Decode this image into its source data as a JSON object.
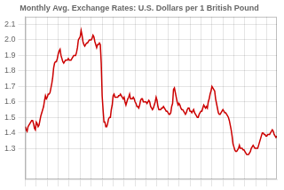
{
  "chart_data": {
    "type": "line",
    "title": "Monthly Avg. Exchange Rates: U.S. Dollars per 1 British Pound",
    "color": "#cc0000",
    "grid": true,
    "tick_labels": "y",
    "xlim": [
      0,
      275
    ],
    "xticks": [
      0,
      12,
      24,
      36,
      48,
      60,
      72,
      84,
      96,
      108,
      120,
      132,
      144,
      156,
      168,
      180,
      192,
      204,
      216,
      228,
      240,
      252,
      264
    ],
    "ylim": [
      1.1,
      2.15
    ],
    "yticks": [
      1.3,
      1.4,
      1.5,
      1.6,
      1.7,
      1.8,
      1.9,
      {
        "value": 2.0,
        "label": "2.0"
      },
      2.1
    ],
    "x": [
      0,
      1,
      2,
      3,
      4,
      5,
      6,
      7,
      8,
      9,
      10,
      11,
      12,
      13,
      14,
      15,
      16,
      17,
      18,
      19,
      20,
      21,
      22,
      23,
      24,
      25,
      26,
      27,
      28,
      29,
      30,
      31,
      32,
      33,
      34,
      35,
      36,
      37,
      38,
      39,
      40,
      41,
      42,
      43,
      44,
      45,
      46,
      47,
      48,
      49,
      50,
      51,
      52,
      53,
      54,
      55,
      56,
      57,
      58,
      59,
      60,
      61,
      62,
      63,
      64,
      65,
      66,
      67,
      68,
      69,
      70,
      71,
      72,
      73,
      74,
      75,
      76,
      77,
      78,
      79,
      80,
      81,
      82,
      83,
      84,
      85,
      86,
      87,
      88,
      89,
      90,
      91,
      92,
      93,
      94,
      95,
      96,
      97,
      98,
      99,
      100,
      101,
      102,
      103,
      104,
      105,
      106,
      107,
      108,
      109,
      110,
      111,
      112,
      113,
      114,
      115,
      116,
      117,
      118,
      119,
      120,
      121,
      122,
      123,
      124,
      125,
      126,
      127,
      128,
      129,
      130,
      131,
      132,
      133,
      134,
      135,
      136,
      137,
      138,
      139,
      140,
      141,
      142,
      143,
      144,
      145,
      146,
      147,
      148,
      149,
      150,
      151,
      152,
      153,
      154,
      155,
      156,
      157,
      158,
      159,
      160,
      161,
      162,
      163,
      164,
      165,
      166,
      167,
      168,
      169,
      170,
      171,
      172,
      173,
      174,
      175,
      176,
      177,
      178,
      179,
      180,
      181,
      182,
      183,
      184,
      185,
      186,
      187,
      188,
      189,
      190,
      191,
      192,
      193,
      194,
      195,
      196,
      197,
      198,
      199,
      200,
      201,
      202,
      203,
      204,
      205,
      206,
      207,
      208,
      209,
      210,
      211,
      212,
      213,
      214,
      215,
      216,
      217,
      218,
      219,
      220,
      221,
      222,
      223,
      224,
      225,
      226,
      227,
      228,
      229,
      230,
      231,
      232,
      233,
      234,
      235,
      236,
      237,
      238,
      239,
      240,
      241,
      242,
      243,
      244,
      245,
      246,
      247,
      248,
      249,
      250,
      251,
      252,
      253,
      254,
      255,
      256,
      257,
      258,
      259,
      260,
      261,
      262,
      263,
      264,
      265,
      266,
      267,
      268,
      269,
      270,
      271,
      272,
      273,
      274,
      275
    ],
    "values": [
      1.44,
      1.42,
      1.41,
      1.44,
      1.45,
      1.46,
      1.47,
      1.48,
      1.48,
      1.46,
      1.43,
      1.42,
      1.47,
      1.46,
      1.44,
      1.45,
      1.48,
      1.51,
      1.53,
      1.55,
      1.57,
      1.61,
      1.64,
      1.62,
      1.63,
      1.65,
      1.65,
      1.66,
      1.69,
      1.72,
      1.76,
      1.82,
      1.85,
      1.86,
      1.86,
      1.88,
      1.91,
      1.93,
      1.94,
      1.9,
      1.88,
      1.86,
      1.85,
      1.86,
      1.87,
      1.87,
      1.87,
      1.88,
      1.87,
      1.87,
      1.87,
      1.88,
      1.89,
      1.9,
      1.9,
      1.9,
      1.92,
      1.95,
      2.0,
      2.01,
      2.02,
      2.06,
      2.03,
      1.99,
      1.97,
      1.96,
      1.97,
      1.98,
      1.98,
      1.99,
      2.0,
      2.0,
      2.0,
      2.01,
      2.03,
      2.02,
      1.99,
      1.97,
      1.95,
      1.97,
      1.97,
      1.98,
      1.97,
      1.85,
      1.64,
      1.55,
      1.47,
      1.47,
      1.44,
      1.44,
      1.46,
      1.49,
      1.5,
      1.5,
      1.55,
      1.58,
      1.64,
      1.65,
      1.63,
      1.63,
      1.63,
      1.63,
      1.64,
      1.64,
      1.65,
      1.64,
      1.63,
      1.62,
      1.63,
      1.6,
      1.58,
      1.6,
      1.62,
      1.63,
      1.65,
      1.62,
      1.62,
      1.62,
      1.63,
      1.62,
      1.6,
      1.59,
      1.57,
      1.57,
      1.56,
      1.58,
      1.61,
      1.62,
      1.62,
      1.6,
      1.6,
      1.6,
      1.6,
      1.59,
      1.6,
      1.61,
      1.6,
      1.57,
      1.56,
      1.55,
      1.56,
      1.58,
      1.6,
      1.63,
      1.61,
      1.57,
      1.55,
      1.55,
      1.55,
      1.56,
      1.56,
      1.57,
      1.56,
      1.55,
      1.54,
      1.54,
      1.53,
      1.52,
      1.52,
      1.53,
      1.57,
      1.59,
      1.68,
      1.69,
      1.66,
      1.63,
      1.6,
      1.58,
      1.59,
      1.58,
      1.56,
      1.55,
      1.55,
      1.54,
      1.53,
      1.52,
      1.53,
      1.55,
      1.56,
      1.56,
      1.54,
      1.54,
      1.53,
      1.54,
      1.55,
      1.53,
      1.52,
      1.51,
      1.5,
      1.5,
      1.52,
      1.53,
      1.54,
      1.54,
      1.56,
      1.58,
      1.57,
      1.56,
      1.57,
      1.56,
      1.6,
      1.62,
      1.65,
      1.67,
      1.7,
      1.69,
      1.68,
      1.67,
      1.62,
      1.59,
      1.56,
      1.53,
      1.52,
      1.52,
      1.53,
      1.54,
      1.55,
      1.54,
      1.53,
      1.53,
      1.52,
      1.51,
      1.5,
      1.48,
      1.45,
      1.42,
      1.38,
      1.33,
      1.31,
      1.29,
      1.28,
      1.28,
      1.29,
      1.3,
      1.32,
      1.3,
      1.3,
      1.3,
      1.29,
      1.29,
      1.28,
      1.27,
      1.26,
      1.26,
      1.26,
      1.27,
      1.28,
      1.3,
      1.31,
      1.32,
      1.31,
      1.3,
      1.3,
      1.3,
      1.3,
      1.32,
      1.34,
      1.36,
      1.38,
      1.4,
      1.4,
      1.39,
      1.39,
      1.38,
      1.38,
      1.39,
      1.39,
      1.39,
      1.4,
      1.41,
      1.42,
      1.41,
      1.39,
      1.38,
      1.37,
      1.38
    ]
  }
}
